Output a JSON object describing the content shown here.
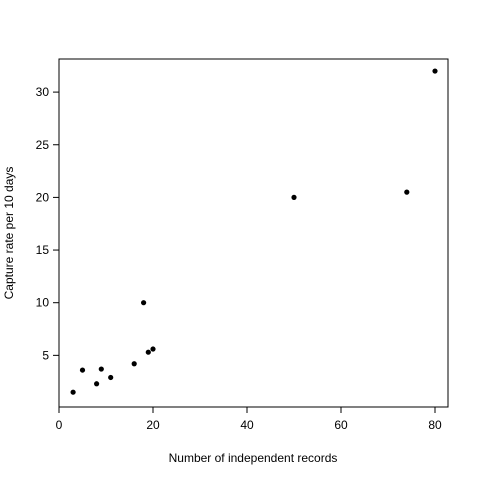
{
  "chart_data": {
    "type": "scatter",
    "title": "",
    "xlabel": "Number of independent records",
    "ylabel": "Capture rate per 10 days",
    "xlim": [
      0,
      82
    ],
    "ylim": [
      0,
      33
    ],
    "xticks": [
      0,
      20,
      40,
      60,
      80
    ],
    "yticks": [
      5,
      10,
      15,
      20,
      25,
      30
    ],
    "grid": false,
    "points": [
      {
        "x": 3,
        "y": 1.5
      },
      {
        "x": 5,
        "y": 3.6
      },
      {
        "x": 8,
        "y": 2.3
      },
      {
        "x": 9,
        "y": 3.7
      },
      {
        "x": 11,
        "y": 2.9
      },
      {
        "x": 16,
        "y": 4.2
      },
      {
        "x": 18,
        "y": 10.0
      },
      {
        "x": 19,
        "y": 5.3
      },
      {
        "x": 20,
        "y": 5.6
      },
      {
        "x": 50,
        "y": 20.0
      },
      {
        "x": 74,
        "y": 20.5
      },
      {
        "x": 80,
        "y": 32.0
      }
    ],
    "point_color": "#000000"
  }
}
